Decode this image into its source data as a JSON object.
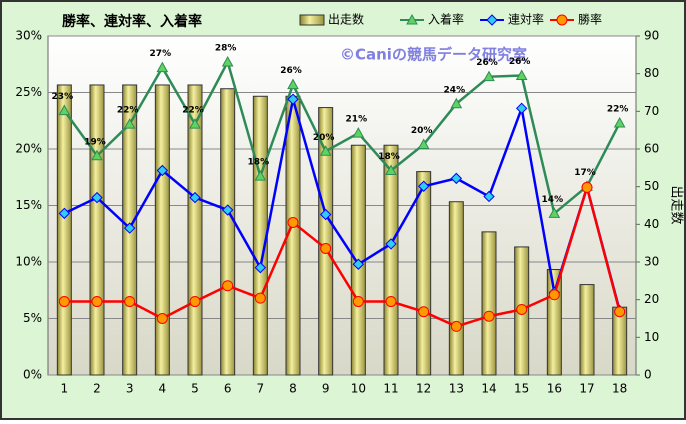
{
  "chart_data": {
    "type": "combo",
    "title": "勝率、連対率、入着率",
    "annotation": "©Caniの競馬データ研究室",
    "y2_label": "出走数",
    "categories": [
      "1",
      "2",
      "3",
      "4",
      "5",
      "6",
      "7",
      "8",
      "9",
      "10",
      "11",
      "12",
      "13",
      "14",
      "15",
      "16",
      "17",
      "18"
    ],
    "series": [
      {
        "name": "出走数",
        "type": "bar",
        "axis": "y2",
        "color": "#e8e27a",
        "values": [
          77,
          77,
          77,
          77,
          77,
          76,
          74,
          74,
          71,
          61,
          61,
          54,
          46,
          38,
          34,
          28,
          24,
          18
        ]
      },
      {
        "name": "入着率",
        "type": "line",
        "color": "#2e8b57",
        "marker": "triangle",
        "marker_color": "#5fd35f",
        "values": [
          23.4,
          19.4,
          22.2,
          27.2,
          22.2,
          27.7,
          17.6,
          25.7,
          19.8,
          21.4,
          18.1,
          20.4,
          24.0,
          26.4,
          26.5,
          14.3,
          16.7,
          22.3
        ],
        "value_labels": [
          "23%",
          "19%",
          "22%",
          "27%",
          "22%",
          "28%",
          "18%",
          "26%",
          "20%",
          "21%",
          "18%",
          "20%",
          "24%",
          "26%",
          "26%",
          "14%",
          "17%",
          "22%"
        ]
      },
      {
        "name": "連対率",
        "type": "line",
        "color": "#0000ff",
        "marker": "diamond",
        "marker_color": "#33ccee",
        "values": [
          14.3,
          15.7,
          13.0,
          18.1,
          15.7,
          14.6,
          9.5,
          24.4,
          14.2,
          9.8,
          11.6,
          16.7,
          17.4,
          15.8,
          23.6,
          7.3,
          16.6,
          5.7
        ]
      },
      {
        "name": "勝率",
        "type": "line",
        "color": "#ff0000",
        "marker": "circle",
        "marker_color": "#ff9900",
        "values": [
          6.5,
          6.5,
          6.5,
          5.0,
          6.5,
          7.9,
          6.8,
          13.5,
          11.2,
          6.5,
          6.5,
          5.6,
          4.3,
          5.2,
          5.8,
          7.1,
          16.6,
          5.6
        ]
      }
    ],
    "ylim": [
      0,
      30
    ],
    "yticks": [
      {
        "value": 0,
        "label": "0%"
      },
      {
        "value": 5,
        "label": "5%"
      },
      {
        "value": 10,
        "label": "10%"
      },
      {
        "value": 15,
        "label": "15%"
      },
      {
        "value": 20,
        "label": "20%"
      },
      {
        "value": 25,
        "label": "25%"
      },
      {
        "value": 30,
        "label": "30%"
      }
    ],
    "y2lim": [
      0,
      90
    ],
    "y2ticks": [
      0,
      10,
      20,
      30,
      40,
      50,
      60,
      70,
      80,
      90
    ],
    "grid": true
  }
}
